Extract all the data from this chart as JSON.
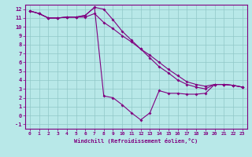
{
  "xlabel": "Windchill (Refroidissement éolien,°C)",
  "bg_color": "#b8e8e8",
  "line_color": "#800080",
  "xlim": [
    -0.5,
    23.5
  ],
  "ylim": [
    -1.5,
    12.5
  ],
  "xticks": [
    0,
    1,
    2,
    3,
    4,
    5,
    6,
    7,
    8,
    9,
    10,
    11,
    12,
    13,
    14,
    15,
    16,
    17,
    18,
    19,
    20,
    21,
    22,
    23
  ],
  "yticks": [
    -1,
    0,
    1,
    2,
    3,
    4,
    5,
    6,
    7,
    8,
    9,
    10,
    11,
    12
  ],
  "line1_x": [
    0,
    1,
    2,
    3,
    4,
    5,
    6,
    7,
    8,
    9,
    10,
    11,
    12,
    13,
    14,
    15,
    16,
    17,
    18,
    19,
    20,
    21,
    22,
    23
  ],
  "line1_y": [
    11.8,
    11.5,
    11.0,
    11.0,
    11.1,
    11.1,
    11.1,
    11.5,
    10.5,
    9.8,
    9.0,
    8.3,
    7.5,
    6.8,
    6.0,
    5.2,
    4.5,
    3.8,
    3.5,
    3.3,
    3.5,
    3.5,
    3.4,
    3.2
  ],
  "line2_x": [
    0,
    1,
    2,
    3,
    4,
    5,
    6,
    7,
    8,
    9,
    10,
    11,
    12,
    13,
    14,
    15,
    16,
    17,
    18,
    19,
    20,
    21,
    22,
    23
  ],
  "line2_y": [
    11.8,
    11.5,
    11.0,
    11.0,
    11.1,
    11.1,
    11.3,
    12.2,
    12.0,
    10.8,
    9.5,
    8.5,
    7.5,
    6.5,
    5.5,
    4.8,
    4.0,
    3.5,
    3.2,
    3.0,
    3.5,
    3.5,
    3.4,
    3.2
  ],
  "line3_x": [
    0,
    1,
    2,
    3,
    4,
    5,
    6,
    7,
    8,
    9,
    10,
    11,
    12,
    13,
    14,
    15,
    16,
    17,
    18,
    19,
    20,
    21,
    22,
    23
  ],
  "line3_y": [
    11.8,
    11.5,
    11.0,
    11.0,
    11.1,
    11.1,
    11.3,
    12.2,
    2.2,
    2.0,
    1.2,
    0.3,
    -0.5,
    0.3,
    2.8,
    2.5,
    2.5,
    2.4,
    2.4,
    2.5,
    3.5,
    3.5,
    3.4,
    3.2
  ]
}
